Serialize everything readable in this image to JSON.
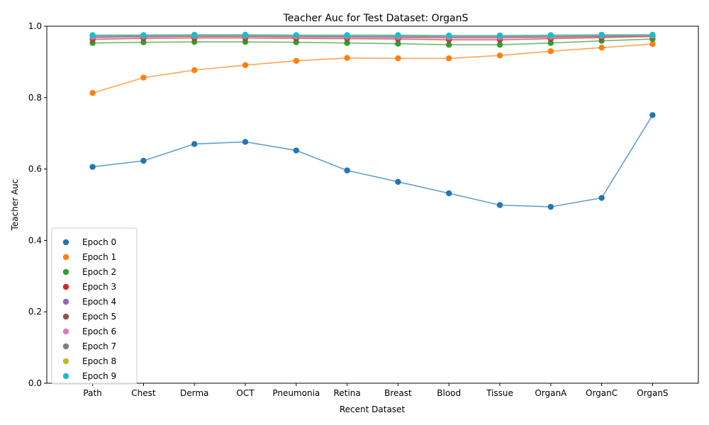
{
  "chart_data": {
    "type": "line",
    "title": "Teacher Auc for Test Dataset: OrganS",
    "xlabel": "Recent Dataset",
    "ylabel": "Teacher Auc",
    "categories": [
      "Path",
      "Chest",
      "Derma",
      "OCT",
      "Pneumonia",
      "Retina",
      "Breast",
      "Blood",
      "Tissue",
      "OrganA",
      "OrganC",
      "OrganS"
    ],
    "ylim": [
      0.0,
      1.0
    ],
    "yticks": [
      "0.0",
      "0.2",
      "0.4",
      "0.6",
      "0.8",
      "1.0"
    ],
    "grid": false,
    "legend_position": "lower-left",
    "series": [
      {
        "name": "Epoch 0",
        "color": "#1f77b4",
        "values": [
          0.606,
          0.623,
          0.67,
          0.676,
          0.652,
          0.596,
          0.564,
          0.532,
          0.499,
          0.494,
          0.519,
          0.751
        ]
      },
      {
        "name": "Epoch 1",
        "color": "#ff7f0e",
        "values": [
          0.813,
          0.856,
          0.877,
          0.891,
          0.903,
          0.911,
          0.91,
          0.91,
          0.918,
          0.93,
          0.94,
          0.95
        ]
      },
      {
        "name": "Epoch 2",
        "color": "#2ca02c",
        "values": [
          0.953,
          0.955,
          0.956,
          0.956,
          0.955,
          0.953,
          0.951,
          0.948,
          0.948,
          0.953,
          0.959,
          0.964
        ]
      },
      {
        "name": "Epoch 3",
        "color": "#d62728",
        "values": [
          0.963,
          0.966,
          0.967,
          0.967,
          0.966,
          0.965,
          0.964,
          0.962,
          0.962,
          0.965,
          0.968,
          0.971
        ]
      },
      {
        "name": "Epoch 4",
        "color": "#9467bd",
        "values": [
          0.968,
          0.97,
          0.971,
          0.971,
          0.97,
          0.969,
          0.968,
          0.967,
          0.967,
          0.969,
          0.971,
          0.973
        ]
      },
      {
        "name": "Epoch 5",
        "color": "#8c564b",
        "values": [
          0.97,
          0.972,
          0.972,
          0.972,
          0.971,
          0.971,
          0.97,
          0.969,
          0.969,
          0.97,
          0.972,
          0.974
        ]
      },
      {
        "name": "Epoch 6",
        "color": "#e377c2",
        "values": [
          0.971,
          0.973,
          0.973,
          0.973,
          0.972,
          0.972,
          0.971,
          0.97,
          0.97,
          0.971,
          0.973,
          0.974
        ]
      },
      {
        "name": "Epoch 7",
        "color": "#7f7f7f",
        "values": [
          0.973,
          0.974,
          0.974,
          0.974,
          0.974,
          0.973,
          0.973,
          0.972,
          0.972,
          0.973,
          0.974,
          0.975
        ]
      },
      {
        "name": "Epoch 8",
        "color": "#bcbd22",
        "values": [
          0.974,
          0.975,
          0.975,
          0.975,
          0.974,
          0.974,
          0.974,
          0.973,
          0.973,
          0.974,
          0.975,
          0.975
        ]
      },
      {
        "name": "Epoch 9",
        "color": "#17becf",
        "values": [
          0.975,
          0.975,
          0.976,
          0.976,
          0.975,
          0.975,
          0.975,
          0.974,
          0.974,
          0.975,
          0.976,
          0.976
        ]
      }
    ]
  }
}
